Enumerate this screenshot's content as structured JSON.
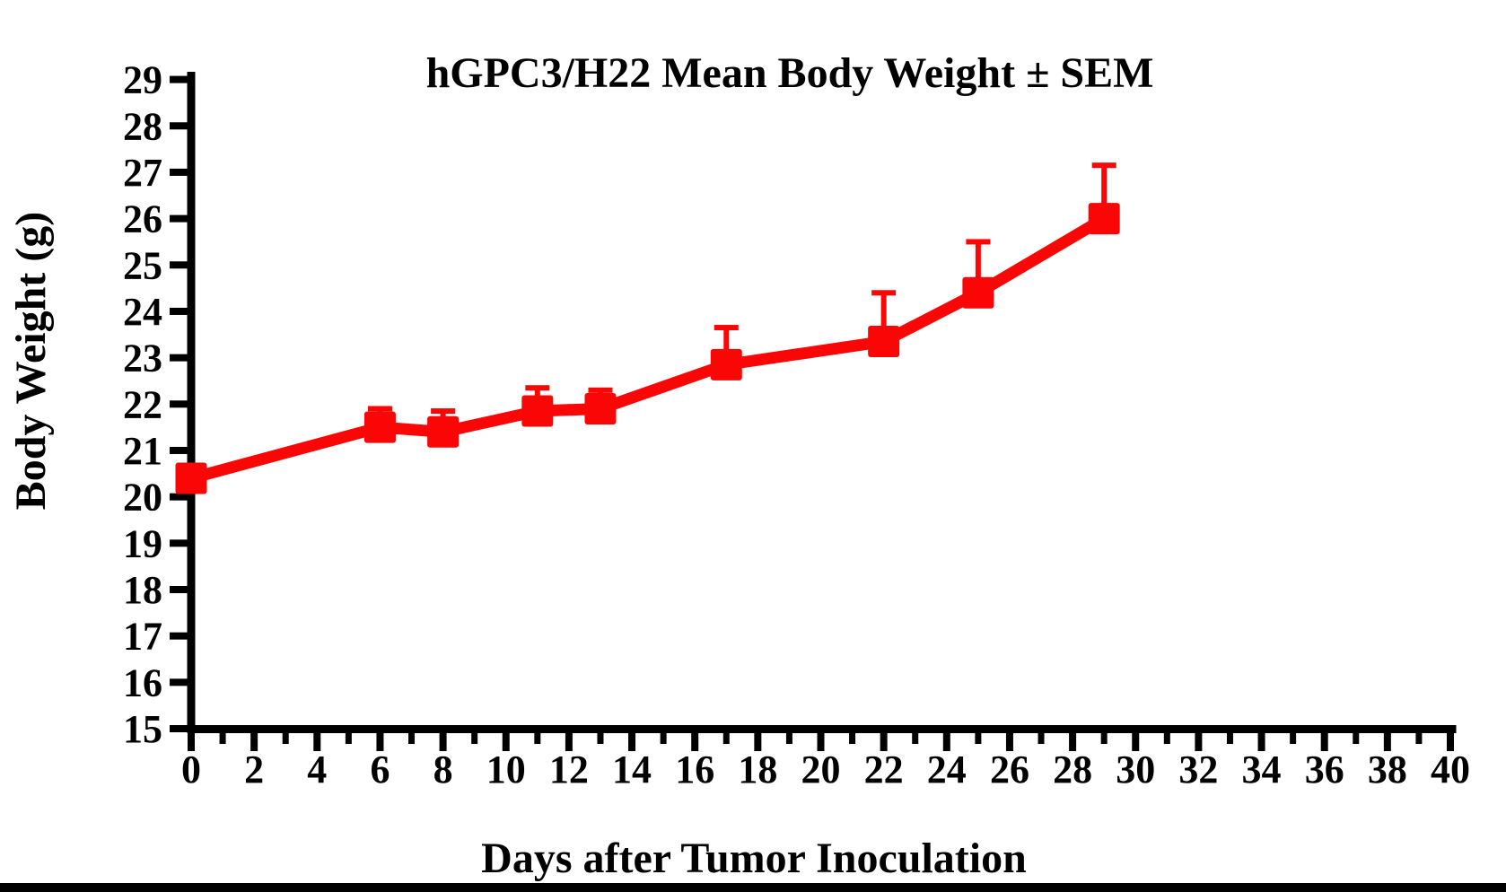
{
  "chart_data": {
    "type": "line",
    "title": "hGPC3/H22 Mean Body Weight ± SEM",
    "xlabel": "Days after Tumor Inoculation",
    "ylabel": "Body Weight (g)",
    "xlim": [
      0,
      40
    ],
    "ylim": [
      15,
      29
    ],
    "grid": false,
    "legend": "none",
    "error_bars": "upper SEM only",
    "x_major_ticks": [
      0,
      2,
      4,
      6,
      8,
      10,
      12,
      14,
      16,
      18,
      20,
      22,
      24,
      26,
      28,
      30,
      32,
      34,
      36,
      38,
      40
    ],
    "x_minor_ticks": [
      1,
      3,
      5,
      7,
      9,
      11,
      13,
      15,
      17,
      19,
      21,
      23,
      25,
      27,
      29,
      31,
      33,
      35,
      37,
      39
    ],
    "y_ticks": [
      15,
      16,
      17,
      18,
      19,
      20,
      21,
      22,
      23,
      24,
      25,
      26,
      27,
      28,
      29
    ],
    "series": [
      {
        "name": "hGPC3/H22 mean body weight",
        "color": "#fa0606",
        "marker": "square",
        "x": [
          0,
          6,
          8,
          11,
          13,
          17,
          22,
          25,
          29
        ],
        "y": [
          20.4,
          21.5,
          21.4,
          21.85,
          21.9,
          22.85,
          23.35,
          24.4,
          26.0
        ],
        "sem_upper": [
          0,
          0.4,
          0.45,
          0.5,
          0.4,
          0.8,
          1.05,
          1.1,
          1.15
        ]
      }
    ]
  },
  "colors": {
    "axis": "#000000",
    "series_red": "#fa0606",
    "background": "#ffffff",
    "bottom_bar": "#000000"
  }
}
